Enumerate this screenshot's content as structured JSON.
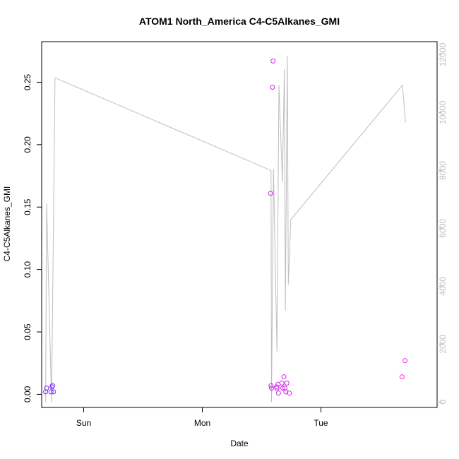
{
  "chart_data": {
    "type": "scatter",
    "title": "ATOM1 North_America C4-C5Alkanes_GMI",
    "xlabel": "Date",
    "ylabel": "C4-C5Alkanes_GMI",
    "x_ticks": [
      {
        "label": "Sun",
        "value": 0
      },
      {
        "label": "Mon",
        "value": 24
      },
      {
        "label": "Tue",
        "value": 48
      }
    ],
    "x_unit": "hours since Sunday 00:00",
    "xlim": [
      -8.5,
      71.5
    ],
    "ylim": [
      -0.0105,
      0.2825
    ],
    "y_ticks": [
      0.0,
      0.05,
      0.1,
      0.15,
      0.2,
      0.25
    ],
    "y_tick_labels": [
      "0.00",
      "0.05",
      "0.10",
      "0.15",
      "0.20",
      "0.25"
    ],
    "y2lim": [
      -190,
      12450
    ],
    "y2_ticks": [
      0,
      2000,
      4000,
      6000,
      8000,
      10000,
      12000
    ],
    "y2_tick_labels": [
      "0",
      "2000",
      "4000",
      "6000",
      "8000",
      "10000",
      "12000"
    ],
    "colors": {
      "points_start": "#7b29ff",
      "points_end": "#ff1fe0",
      "line": "#bebebe"
    },
    "series": [
      {
        "type": "points",
        "points": [
          {
            "x": -7.7,
            "y": 0.002
          },
          {
            "x": -7.5,
            "y": 0.005
          },
          {
            "x": -6.6,
            "y": 0.002
          },
          {
            "x": -6.4,
            "y": 0.006
          },
          {
            "x": -6.3,
            "y": 0.007
          },
          {
            "x": -6.1,
            "y": 0.002
          },
          {
            "x": 37.8,
            "y": 0.161
          },
          {
            "x": 37.9,
            "y": 0.007
          },
          {
            "x": 38.0,
            "y": 0.005
          },
          {
            "x": 38.2,
            "y": 0.246
          },
          {
            "x": 38.3,
            "y": 0.267
          },
          {
            "x": 39.0,
            "y": 0.006
          },
          {
            "x": 39.1,
            "y": 0.005
          },
          {
            "x": 39.3,
            "y": 0.008
          },
          {
            "x": 39.4,
            "y": 0.001
          },
          {
            "x": 40.1,
            "y": 0.009
          },
          {
            "x": 40.3,
            "y": 0.005
          },
          {
            "x": 40.5,
            "y": 0.014
          },
          {
            "x": 40.7,
            "y": 0.005
          },
          {
            "x": 40.9,
            "y": 0.002
          },
          {
            "x": 41.1,
            "y": 0.009
          },
          {
            "x": 41.6,
            "y": 0.001
          },
          {
            "x": 64.4,
            "y": 0.014
          },
          {
            "x": 65.0,
            "y": 0.027
          }
        ]
      },
      {
        "type": "line",
        "axis": "right",
        "points": [
          {
            "x": -7.7,
            "y": 0
          },
          {
            "x": -7.5,
            "y": 6850
          },
          {
            "x": -6.5,
            "y": 0
          },
          {
            "x": -5.8,
            "y": 11200
          },
          {
            "x": 37.9,
            "y": 8000
          },
          {
            "x": 38.0,
            "y": 0
          },
          {
            "x": 38.4,
            "y": 8050
          },
          {
            "x": 39.1,
            "y": 1750
          },
          {
            "x": 39.5,
            "y": 10950
          },
          {
            "x": 40.2,
            "y": 7600
          },
          {
            "x": 40.6,
            "y": 11500
          },
          {
            "x": 40.8,
            "y": 3150
          },
          {
            "x": 41.2,
            "y": 11950
          },
          {
            "x": 41.4,
            "y": 4050
          },
          {
            "x": 41.9,
            "y": 6300
          },
          {
            "x": 64.5,
            "y": 10950
          },
          {
            "x": 65.1,
            "y": 9650
          }
        ]
      }
    ]
  }
}
